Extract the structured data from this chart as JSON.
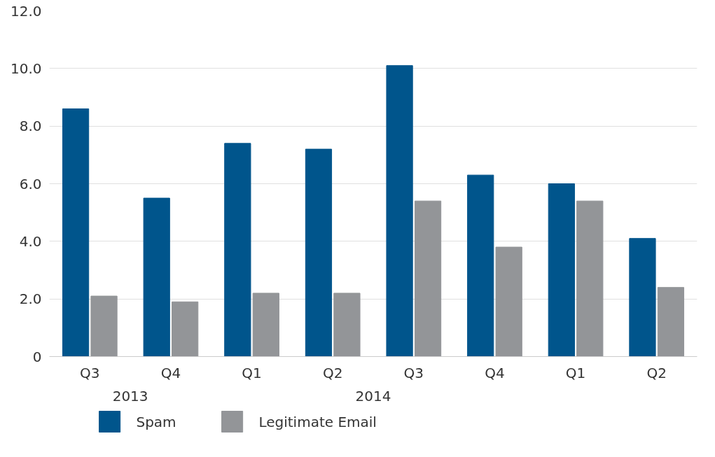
{
  "chart_data": {
    "type": "bar",
    "categories": [
      "Q3",
      "Q4",
      "Q1",
      "Q2",
      "Q3",
      "Q4",
      "Q1",
      "Q2"
    ],
    "series": [
      {
        "name": "Spam",
        "color": "#00558c",
        "values": [
          8.6,
          5.5,
          7.4,
          7.2,
          10.1,
          6.3,
          6.0,
          4.1
        ]
      },
      {
        "name": "Legitimate Email",
        "color": "#939598",
        "values": [
          2.1,
          1.9,
          2.2,
          2.2,
          5.4,
          3.8,
          5.4,
          2.4
        ]
      }
    ],
    "annotations": [
      "2013",
      "2014"
    ],
    "ylim": [
      0,
      12
    ],
    "yticks": [
      0,
      {
        "value": 2,
        "label": "2.0"
      },
      {
        "value": 4,
        "label": "4.0"
      },
      {
        "value": 6,
        "label": "6.0"
      },
      {
        "value": 8,
        "label": "8.0"
      },
      {
        "value": 10,
        "label": "10.0"
      },
      {
        "value": 12,
        "label": "12.0"
      }
    ],
    "grid": "y",
    "legend": "bottom left"
  }
}
